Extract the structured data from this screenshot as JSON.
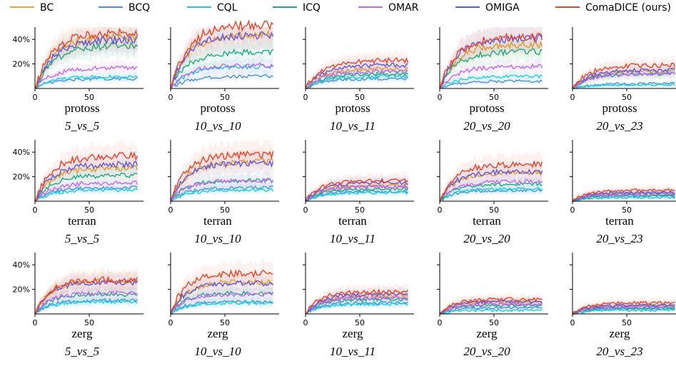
{
  "legend": [
    {
      "name": "BC",
      "color": "#f5a623"
    },
    {
      "name": "BCQ",
      "color": "#4a90e2"
    },
    {
      "name": "CQL",
      "color": "#1ccfe6"
    },
    {
      "name": "ICQ",
      "color": "#17b27a"
    },
    {
      "name": "OMAR",
      "color": "#c466f0"
    },
    {
      "name": "OMIGA",
      "color": "#5a5ae8"
    },
    {
      "name": "ComaDICE (ours)",
      "color": "#e8442a"
    }
  ],
  "chart_data": {
    "type": "line",
    "x_ticks": [
      0,
      50
    ],
    "xlim": [
      0,
      100
    ],
    "ylim": [
      0,
      50
    ],
    "y_ticks": [
      "20%",
      "40%"
    ],
    "y_tick_values": [
      20,
      40
    ],
    "panels": [
      {
        "race": "protoss",
        "map": "5_vs_5",
        "final": {
          "BC": 42,
          "BCQ": 8,
          "CQL": 10,
          "ICQ": 35,
          "OMAR": 17,
          "OMIGA": 40,
          "ComaDICE (ours)": 46
        }
      },
      {
        "race": "protoss",
        "map": "10_vs_10",
        "final": {
          "BC": 44,
          "BCQ": 10,
          "CQL": 18,
          "ICQ": 30,
          "OMAR": 19,
          "OMIGA": 44,
          "ComaDICE (ours)": 52
        }
      },
      {
        "race": "protoss",
        "map": "10_vs_11",
        "final": {
          "BC": 16,
          "BCQ": 8,
          "CQL": 10,
          "ICQ": 12,
          "OMAR": 14,
          "OMIGA": 19,
          "ComaDICE (ours)": 23
        }
      },
      {
        "race": "protoss",
        "map": "20_vs_20",
        "final": {
          "BC": 36,
          "BCQ": 6,
          "CQL": 10,
          "ICQ": 30,
          "OMAR": 18,
          "OMIGA": 41,
          "ComaDICE (ours)": 42
        }
      },
      {
        "race": "protoss",
        "map": "20_vs_23",
        "final": {
          "BC": 14,
          "BCQ": 4,
          "CQL": 3,
          "ICQ": 12,
          "OMAR": 12,
          "OMIGA": 15,
          "ComaDICE (ours)": 19
        }
      },
      {
        "race": "terran",
        "map": "5_vs_5",
        "final": {
          "BC": 27,
          "BCQ": 11,
          "CQL": 9,
          "ICQ": 21,
          "OMAR": 15,
          "OMIGA": 30,
          "ComaDICE (ours)": 37
        }
      },
      {
        "race": "terran",
        "map": "10_vs_10",
        "final": {
          "BC": 32,
          "BCQ": 11,
          "CQL": 9,
          "ICQ": 17,
          "OMAR": 17,
          "OMIGA": 31,
          "ComaDICE (ours)": 38
        }
      },
      {
        "race": "terran",
        "map": "10_vs_11",
        "final": {
          "BC": 13,
          "BCQ": 8,
          "CQL": 7,
          "ICQ": 10,
          "OMAR": 12,
          "OMIGA": 15,
          "ComaDICE (ours)": 17
        }
      },
      {
        "race": "terran",
        "map": "20_vs_20",
        "final": {
          "BC": 23,
          "BCQ": 9,
          "CQL": 10,
          "ICQ": 14,
          "OMAR": 16,
          "OMIGA": 24,
          "ComaDICE (ours)": 30
        }
      },
      {
        "race": "terran",
        "map": "20_vs_23",
        "final": {
          "BC": 7,
          "BCQ": 4,
          "CQL": 3,
          "ICQ": 5,
          "OMAR": 6,
          "OMIGA": 7,
          "ComaDICE (ours)": 9
        }
      },
      {
        "race": "zerg",
        "map": "5_vs_5",
        "final": {
          "BC": 27,
          "BCQ": 11,
          "CQL": 10,
          "ICQ": 16,
          "OMAR": 17,
          "OMIGA": 26,
          "ComaDICE (ours)": 28
        }
      },
      {
        "race": "zerg",
        "map": "10_vs_10",
        "final": {
          "BC": 26,
          "BCQ": 10,
          "CQL": 9,
          "ICQ": 17,
          "OMAR": 16,
          "OMIGA": 25,
          "ComaDICE (ours)": 33
        }
      },
      {
        "race": "zerg",
        "map": "10_vs_11",
        "final": {
          "BC": 15,
          "BCQ": 9,
          "CQL": 8,
          "ICQ": 12,
          "OMAR": 13,
          "OMIGA": 16,
          "ComaDICE (ours)": 18
        }
      },
      {
        "race": "zerg",
        "map": "20_vs_20",
        "final": {
          "BC": 10,
          "BCQ": 5,
          "CQL": 3,
          "ICQ": 7,
          "OMAR": 8,
          "OMIGA": 10,
          "ComaDICE (ours)": 12
        }
      },
      {
        "race": "zerg",
        "map": "20_vs_23",
        "final": {
          "BC": 7,
          "BCQ": 4,
          "CQL": 3,
          "ICQ": 5,
          "OMAR": 6,
          "OMIGA": 7,
          "ComaDICE (ours)": 9
        }
      }
    ]
  }
}
